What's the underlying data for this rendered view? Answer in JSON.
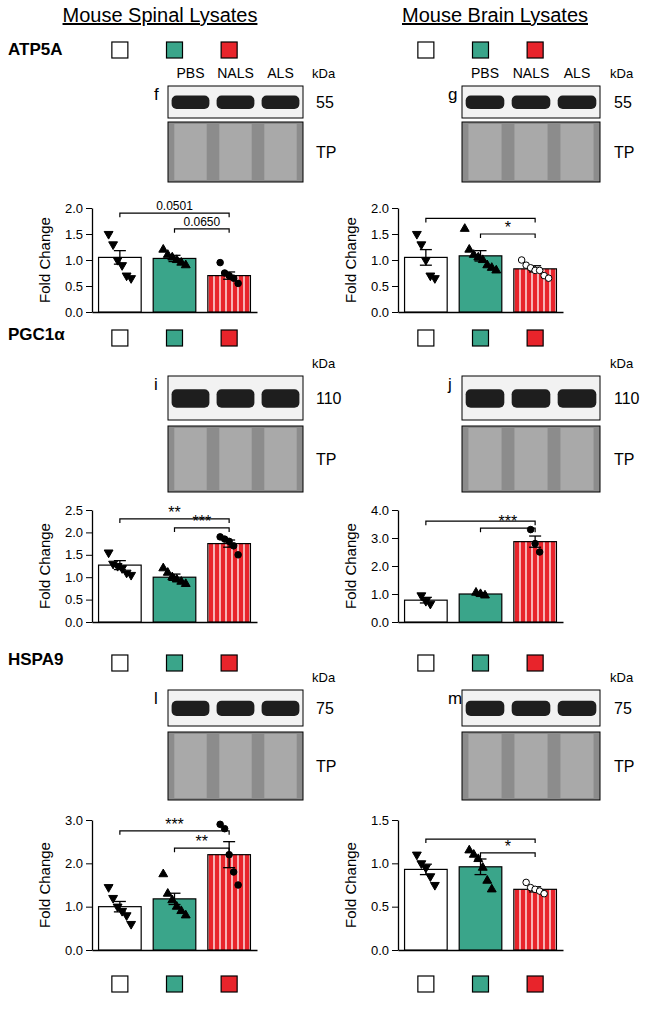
{
  "figure": {
    "columns": [
      "Mouse Spinal Lysates",
      "Mouse Brain Lysates"
    ],
    "rows": [
      "ATP5A",
      "PGC1α",
      "HSPA9"
    ]
  },
  "chart_data": [
    {
      "type": "bar",
      "panel": "f",
      "lanes": [
        "PBS",
        "NALS",
        "ALS"
      ],
      "kda": 55,
      "kda_unit": "kDa",
      "blot_label": "TP",
      "y_label": "Fold Change",
      "categories": [
        null,
        null,
        null
      ],
      "colors": [
        "#ffffff",
        "#3aa58a",
        "#e8242b"
      ],
      "markers": [
        "triangle-down",
        "triangle",
        "circle"
      ],
      "ylim": [
        0,
        2
      ],
      "yticks": [
        {
          "value": 0,
          "label": "0.0"
        },
        {
          "value": 0.5,
          "label": "0.5"
        },
        {
          "value": 1,
          "label": "1.0"
        },
        {
          "value": 1.5,
          "label": "1.5"
        },
        {
          "value": 2,
          "label": "2.0"
        }
      ],
      "series": [
        {
          "values": [
            1.05,
            1.03,
            0.7
          ],
          "errors": [
            0.13,
            0.06,
            0.07
          ],
          "points": [
            [
              1.5,
              1.3,
              1.0,
              0.9,
              0.7,
              0.65
            ],
            [
              1.2,
              1.1,
              1.05,
              1.0,
              0.95,
              0.9
            ],
            [
              0.95,
              0.75,
              0.7,
              0.65,
              0.55
            ]
          ]
        }
      ],
      "annotations": [
        {
          "pair": [
            0,
            2
          ],
          "y": 1.9,
          "label": "0.0501"
        },
        {
          "pair": [
            1,
            2
          ],
          "y": 1.6,
          "label": "0.0650"
        }
      ]
    },
    {
      "type": "bar",
      "panel": "g",
      "lanes": [
        "PBS",
        "NALS",
        "ALS"
      ],
      "kda": 55,
      "kda_unit": "kDa",
      "blot_label": "TP",
      "y_label": "Fold Change",
      "categories": [
        null,
        null,
        null
      ],
      "colors": [
        "#ffffff",
        "#3aa58a",
        "#e8242b"
      ],
      "markers": [
        "triangle-down",
        "triangle",
        "circle-open"
      ],
      "ylim": [
        0,
        2
      ],
      "yticks": [
        {
          "value": 0,
          "label": "0.0"
        },
        {
          "value": 0.5,
          "label": "0.5"
        },
        {
          "value": 1,
          "label": "1.0"
        },
        {
          "value": 1.5,
          "label": "1.5"
        },
        {
          "value": 2,
          "label": "2.0"
        }
      ],
      "series": [
        {
          "values": [
            1.05,
            1.08,
            0.83
          ],
          "errors": [
            0.15,
            0.1,
            0.06
          ],
          "points": [
            [
              1.5,
              1.3,
              1.0,
              0.7,
              0.65
            ],
            [
              1.6,
              1.2,
              1.1,
              1.05,
              1.0,
              0.9,
              0.85,
              0.8
            ],
            [
              1.0,
              0.9,
              0.85,
              0.8,
              0.8,
              0.7,
              0.65
            ]
          ]
        }
      ],
      "annotations": [
        {
          "pair": [
            0,
            2
          ],
          "y": 1.8
        },
        {
          "pair": [
            1,
            2
          ],
          "y": 1.5,
          "label": "*"
        }
      ]
    },
    {
      "type": "bar",
      "panel": "i",
      "kda": 110,
      "kda_unit": "kDa",
      "blot_label": "TP",
      "y_label": "Fold Change",
      "categories": [
        null,
        null,
        null
      ],
      "colors": [
        "#ffffff",
        "#3aa58a",
        "#e8242b"
      ],
      "markers": [
        "triangle-down",
        "triangle",
        "circle"
      ],
      "ylim": [
        0,
        2.5
      ],
      "yticks": [
        {
          "value": 0,
          "label": "0.0"
        },
        {
          "value": 0.5,
          "label": "0.5"
        },
        {
          "value": 1,
          "label": "1.0"
        },
        {
          "value": 1.5,
          "label": "1.5"
        },
        {
          "value": 2,
          "label": "2.0"
        },
        {
          "value": 2.5,
          "label": "2.5"
        }
      ],
      "series": [
        {
          "values": [
            1.27,
            1.0,
            1.75
          ],
          "errors": [
            0.1,
            0.07,
            0.08
          ],
          "points": [
            [
              1.55,
              1.3,
              1.25,
              1.2,
              1.1,
              1.05
            ],
            [
              1.2,
              1.1,
              1.0,
              0.95,
              0.9,
              0.85
            ],
            [
              1.9,
              1.85,
              1.8,
              1.7,
              1.5
            ]
          ]
        }
      ],
      "annotations": [
        {
          "pair": [
            0,
            2
          ],
          "y": 2.3,
          "label": "**"
        },
        {
          "pair": [
            1,
            2
          ],
          "y": 2.1,
          "label": "***"
        }
      ]
    },
    {
      "type": "bar",
      "panel": "j",
      "kda": 110,
      "kda_unit": "kDa",
      "blot_label": "TP",
      "y_label": "Fold Change",
      "categories": [
        null,
        null,
        null
      ],
      "colors": [
        "#ffffff",
        "#3aa58a",
        "#e8242b"
      ],
      "markers": [
        "triangle-down",
        "triangle",
        "circle"
      ],
      "ylim": [
        0,
        4
      ],
      "yticks": [
        {
          "value": 0,
          "label": "0.0"
        },
        {
          "value": 1,
          "label": "1.0"
        },
        {
          "value": 2,
          "label": "2.0"
        },
        {
          "value": 3,
          "label": "3.0"
        },
        {
          "value": 4,
          "label": "4.0"
        }
      ],
      "series": [
        {
          "values": [
            0.78,
            1.0,
            2.87
          ],
          "errors": [
            0.1,
            0.05,
            0.2
          ],
          "points": [
            [
              0.95,
              0.75,
              0.65
            ],
            [
              1.05,
              1.0,
              0.95
            ],
            [
              3.3,
              2.8,
              2.5
            ]
          ]
        }
      ],
      "annotations": [
        {
          "pair": [
            0,
            2
          ],
          "y": 3.6
        },
        {
          "pair": [
            1,
            2
          ],
          "y": 3.35,
          "label": "***"
        }
      ]
    },
    {
      "type": "bar",
      "panel": "l",
      "kda": 75,
      "kda_unit": "kDa",
      "blot_label": "TP",
      "y_label": "Fold Change",
      "categories": [
        null,
        null,
        null
      ],
      "colors": [
        "#ffffff",
        "#3aa58a",
        "#e8242b"
      ],
      "markers": [
        "triangle-down",
        "triangle",
        "circle"
      ],
      "ylim": [
        0,
        3
      ],
      "yticks": [
        {
          "value": 0,
          "label": "0.0"
        },
        {
          "value": 1,
          "label": "1.0"
        },
        {
          "value": 2,
          "label": "2.0"
        },
        {
          "value": 3,
          "label": "3.0"
        }
      ],
      "series": [
        {
          "values": [
            1.0,
            1.18,
            2.2
          ],
          "errors": [
            0.12,
            0.13,
            0.3
          ],
          "points": [
            [
              1.45,
              1.2,
              1.0,
              0.9,
              0.8,
              0.6
            ],
            [
              1.75,
              1.3,
              1.15,
              1.0,
              0.9,
              0.8
            ],
            [
              2.9,
              2.8,
              2.2,
              1.8,
              1.5
            ]
          ]
        }
      ],
      "annotations": [
        {
          "pair": [
            0,
            2
          ],
          "y": 2.75,
          "label": "***"
        },
        {
          "pair": [
            1,
            2
          ],
          "y": 2.35,
          "label": "**"
        }
      ]
    },
    {
      "type": "bar",
      "panel": "m",
      "kda": 75,
      "kda_unit": "kDa",
      "blot_label": "TP",
      "y_label": "Fold Change",
      "categories": [
        null,
        null,
        null
      ],
      "colors": [
        "#ffffff",
        "#3aa58a",
        "#e8242b"
      ],
      "markers": [
        "triangle-down",
        "triangle",
        "circle-open"
      ],
      "ylim": [
        0,
        1.5
      ],
      "yticks": [
        {
          "value": 0,
          "label": "0.0"
        },
        {
          "value": 0.5,
          "label": "0.5"
        },
        {
          "value": 1,
          "label": "1.0"
        },
        {
          "value": 1.5,
          "label": "1.5"
        }
      ],
      "series": [
        {
          "values": [
            0.93,
            0.96,
            0.7
          ],
          "errors": [
            0.06,
            0.09,
            0.03
          ],
          "points": [
            [
              1.1,
              1.0,
              0.95,
              0.85,
              0.75
            ],
            [
              1.15,
              1.1,
              1.05,
              0.95,
              0.8,
              0.7
            ],
            [
              0.78,
              0.72,
              0.7,
              0.68,
              0.65
            ]
          ]
        }
      ],
      "annotations": [
        {
          "pair": [
            0,
            2
          ],
          "y": 1.28
        },
        {
          "pair": [
            1,
            2
          ],
          "y": 1.12,
          "label": "*"
        }
      ]
    }
  ]
}
